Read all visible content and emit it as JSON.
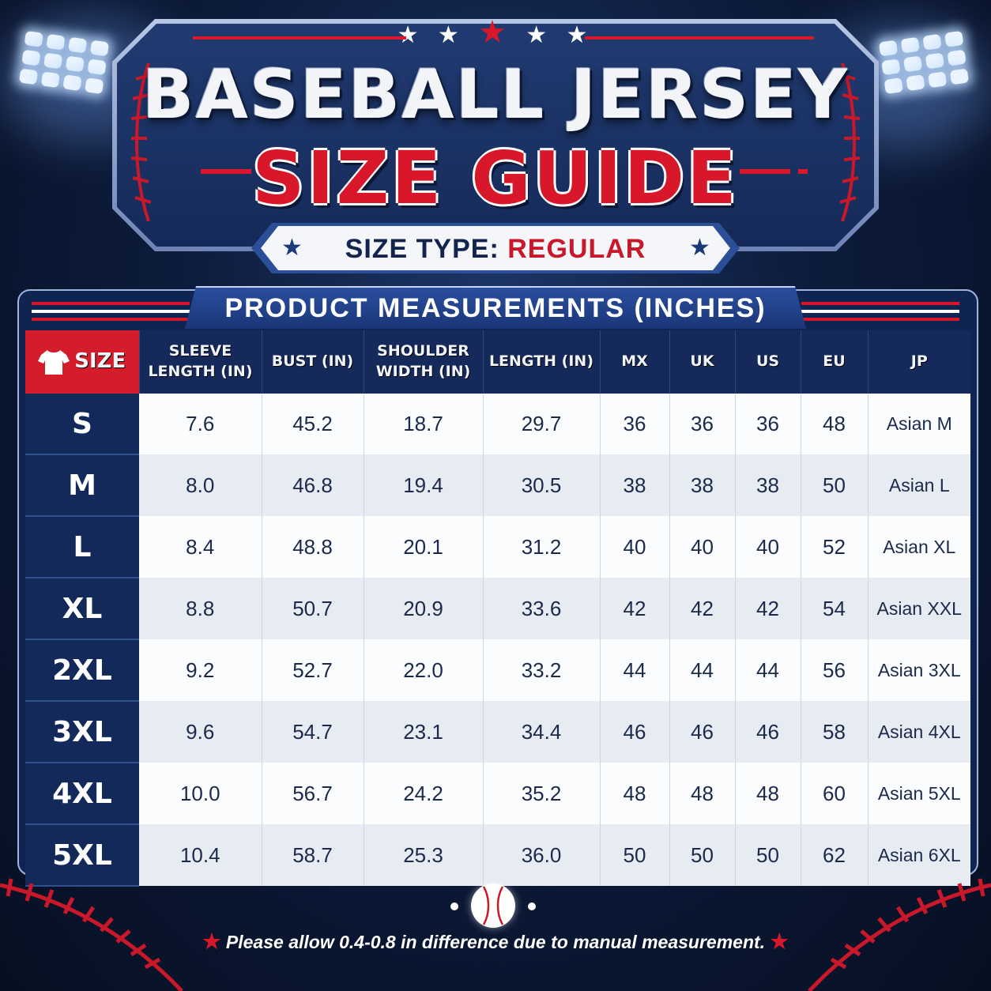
{
  "header": {
    "stars": [
      "★",
      "★",
      "★",
      "★",
      "★"
    ],
    "title_line1": "BASEBALL JERSEY",
    "title_line2": "SIZE GUIDE",
    "size_type_label": "SIZE TYPE:",
    "size_type_value": "REGULAR"
  },
  "table": {
    "section_title": "PRODUCT MEASUREMENTS (INCHES)",
    "columns": [
      [
        "SIZE"
      ],
      [
        "SLEEVE",
        "LENGTH (IN)"
      ],
      [
        "BUST (IN)"
      ],
      [
        "SHOULDER",
        "WIDTH (IN)"
      ],
      [
        "LENGTH (IN)"
      ],
      [
        "MX"
      ],
      [
        "UK"
      ],
      [
        "US"
      ],
      [
        "EU"
      ],
      [
        "JP"
      ]
    ],
    "rows": [
      [
        "S",
        "7.6",
        "45.2",
        "18.7",
        "29.7",
        "36",
        "36",
        "36",
        "48",
        "Asian M"
      ],
      [
        "M",
        "8.0",
        "46.8",
        "19.4",
        "30.5",
        "38",
        "38",
        "38",
        "50",
        "Asian L"
      ],
      [
        "L",
        "8.4",
        "48.8",
        "20.1",
        "31.2",
        "40",
        "40",
        "40",
        "52",
        "Asian XL"
      ],
      [
        "XL",
        "8.8",
        "50.7",
        "20.9",
        "33.6",
        "42",
        "42",
        "42",
        "54",
        "Asian XXL"
      ],
      [
        "2XL",
        "9.2",
        "52.7",
        "22.0",
        "33.2",
        "44",
        "44",
        "44",
        "56",
        "Asian 3XL"
      ],
      [
        "3XL",
        "9.6",
        "54.7",
        "23.1",
        "34.4",
        "46",
        "46",
        "46",
        "58",
        "Asian 4XL"
      ],
      [
        "4XL",
        "10.0",
        "56.7",
        "24.2",
        "35.2",
        "48",
        "48",
        "48",
        "60",
        "Asian 5XL"
      ],
      [
        "5XL",
        "10.4",
        "58.7",
        "25.3",
        "36.0",
        "50",
        "50",
        "50",
        "62",
        "Asian 6XL"
      ]
    ]
  },
  "footer": {
    "note": "Please allow 0.4-0.8 in difference due to manual measurement."
  },
  "colors": {
    "navy": "#13295a",
    "red": "#d41c2b",
    "white": "#ffffff"
  },
  "icons": [
    "tshirt-icon",
    "baseball-icon",
    "star-icon",
    "stadium-light-icon",
    "baseball-stitch-icon"
  ]
}
